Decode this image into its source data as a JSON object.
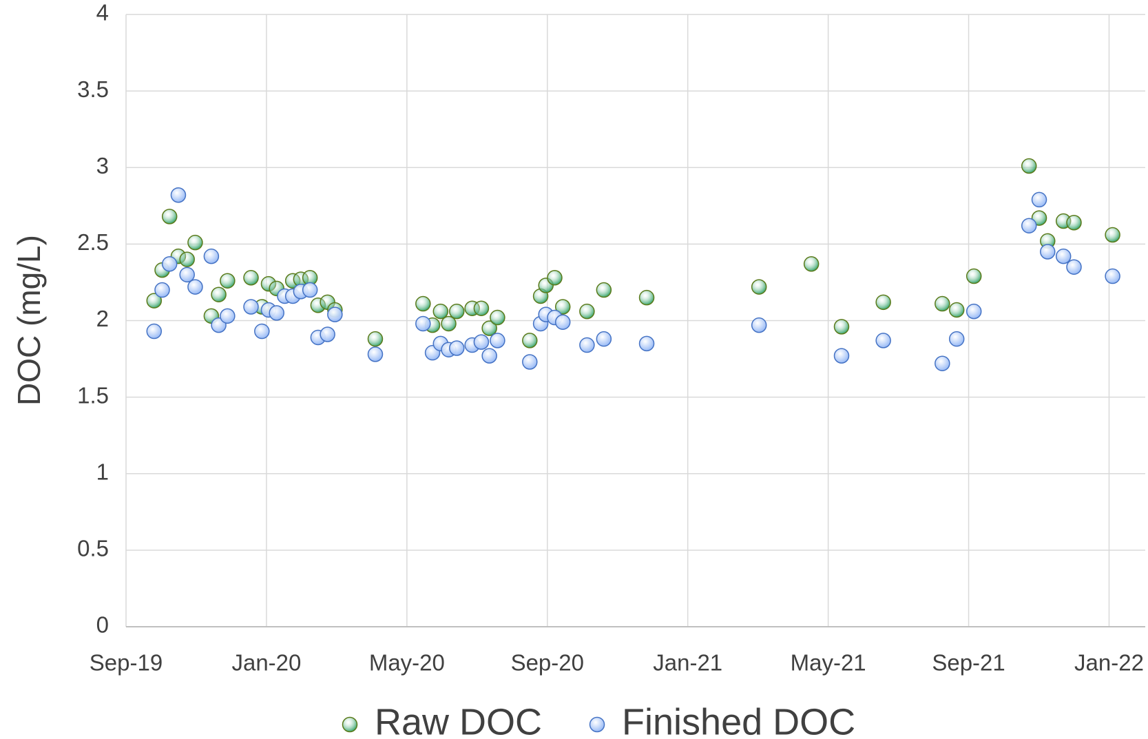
{
  "chart_data": {
    "type": "scatter",
    "ylabel": "DOC (mg/L)",
    "xlim": [
      0,
      29.03
    ],
    "xticks": [
      {
        "value": 0,
        "label": "Sep-19"
      },
      {
        "value": 4,
        "label": "Jan-20"
      },
      {
        "value": 8,
        "label": "May-20"
      },
      {
        "value": 12,
        "label": "Sep-20"
      },
      {
        "value": 16,
        "label": "Jan-21"
      },
      {
        "value": 20,
        "label": "May-21"
      },
      {
        "value": 24,
        "label": "Sep-21"
      },
      {
        "value": 28,
        "label": "Jan-22"
      }
    ],
    "ylim": [
      0,
      4
    ],
    "yticks": [
      0,
      0.5,
      1,
      1.5,
      2,
      2.5,
      3,
      3.5,
      4
    ],
    "grid": true,
    "legend": "bottom",
    "series": [
      {
        "name": "Raw DOC",
        "color": "#1f9a5a",
        "edge": "#5a7a1a",
        "x": [
          0.8,
          1.03,
          1.24,
          1.49,
          1.74,
          1.97,
          2.43,
          2.64,
          2.89,
          3.56,
          3.87,
          4.06,
          4.29,
          4.75,
          4.98,
          5.24,
          5.47,
          5.74,
          5.95,
          7.1,
          8.46,
          8.73,
          8.96,
          9.19,
          9.42,
          9.86,
          10.12,
          10.35,
          10.58,
          11.5,
          11.81,
          11.96,
          12.21,
          12.44,
          13.13,
          13.61,
          14.83,
          18.03,
          19.52,
          20.38,
          21.57,
          23.25,
          23.66,
          24.15,
          25.72,
          26.01,
          26.25,
          26.7,
          27.0,
          28.1
        ],
        "values": [
          2.13,
          2.33,
          2.68,
          2.42,
          2.4,
          2.51,
          2.03,
          2.17,
          2.26,
          2.28,
          2.09,
          2.24,
          2.21,
          2.26,
          2.27,
          2.28,
          2.1,
          2.12,
          2.07,
          1.88,
          2.11,
          1.97,
          2.06,
          1.98,
          2.06,
          2.08,
          2.08,
          1.95,
          2.02,
          1.87,
          2.16,
          2.23,
          2.28,
          2.09,
          2.06,
          2.2,
          2.15,
          2.22,
          2.37,
          1.96,
          2.12,
          2.11,
          2.07,
          2.29,
          3.01,
          2.67,
          2.52,
          2.65,
          2.64,
          2.56
        ]
      },
      {
        "name": "Finished DOC",
        "color": "#8fb4f5",
        "edge": "#4472c4",
        "x": [
          0.8,
          1.03,
          1.24,
          1.49,
          1.74,
          1.97,
          2.43,
          2.64,
          2.89,
          3.56,
          3.87,
          4.06,
          4.29,
          4.52,
          4.75,
          4.98,
          5.24,
          5.47,
          5.74,
          5.95,
          7.1,
          8.46,
          8.73,
          8.96,
          9.19,
          9.42,
          9.86,
          10.12,
          10.35,
          10.58,
          11.5,
          11.81,
          11.96,
          12.21,
          12.44,
          13.13,
          13.61,
          14.83,
          18.03,
          20.38,
          21.57,
          23.25,
          23.66,
          24.15,
          25.72,
          26.01,
          26.25,
          26.7,
          27.0,
          28.1
        ],
        "values": [
          1.93,
          2.2,
          2.37,
          2.82,
          2.3,
          2.22,
          2.42,
          1.97,
          2.03,
          2.09,
          1.93,
          2.07,
          2.05,
          2.16,
          2.16,
          2.19,
          2.2,
          1.89,
          1.91,
          2.04,
          1.78,
          1.98,
          1.79,
          1.85,
          1.81,
          1.82,
          1.84,
          1.86,
          1.77,
          1.87,
          1.73,
          1.98,
          2.04,
          2.02,
          1.99,
          1.84,
          1.88,
          1.85,
          1.97,
          1.77,
          1.87,
          1.72,
          1.88,
          2.06,
          2.62,
          2.79,
          2.45,
          2.42,
          2.35,
          2.29
        ]
      }
    ]
  }
}
